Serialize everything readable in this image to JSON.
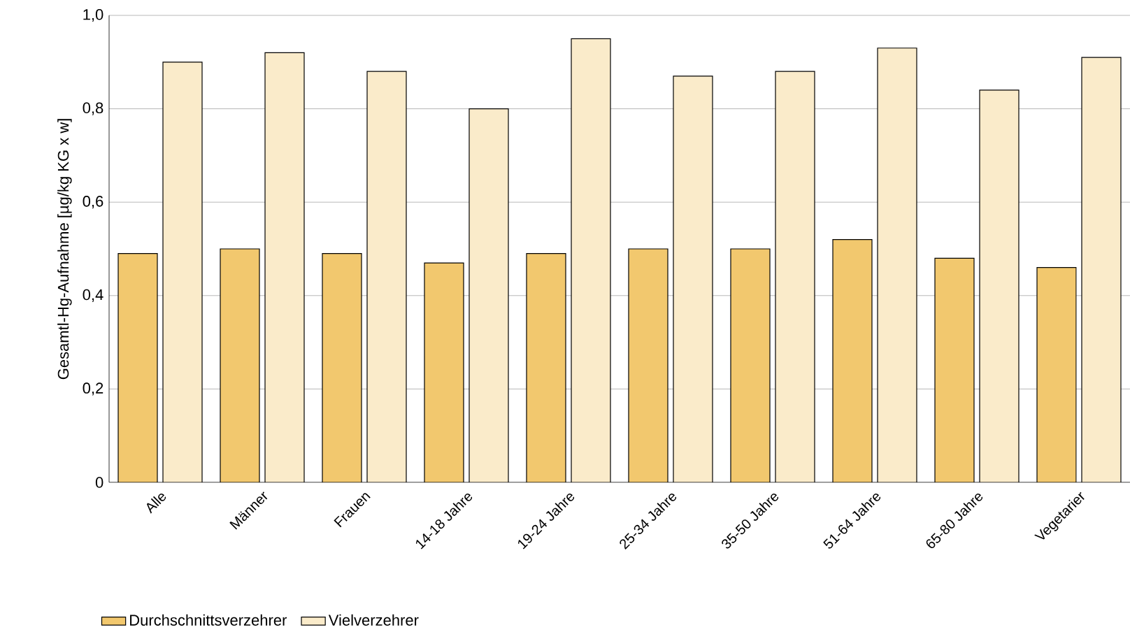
{
  "chart_data": {
    "type": "bar",
    "ylabel": "Gesamtl-Hg-Aufnahme [µg/kg KG x w]",
    "categories": [
      "Alle",
      "Männer",
      "Frauen",
      "14-18 Jahre",
      "19-24 Jahre",
      "25-34 Jahre",
      "35-50 Jahre",
      "51-64 Jahre",
      "65-80 Jahre",
      "Vegetarier"
    ],
    "series": [
      {
        "name": "Durchschnittsverzehrer",
        "color": "#f2c86e",
        "values": [
          0.49,
          0.5,
          0.49,
          0.47,
          0.49,
          0.5,
          0.5,
          0.52,
          0.48,
          0.46
        ]
      },
      {
        "name": "Vielverzehrer",
        "color": "#faebca",
        "values": [
          0.9,
          0.92,
          0.88,
          0.8,
          0.95,
          0.87,
          0.88,
          0.93,
          0.84,
          0.91
        ]
      }
    ],
    "ylim": [
      0,
      1
    ],
    "yticks": [
      {
        "value": 0,
        "label": "0"
      },
      {
        "value": 0.2,
        "label": "0,2"
      },
      {
        "value": 0.4,
        "label": "0,4"
      },
      {
        "value": 0.6,
        "label": "0,6"
      },
      {
        "value": 0.8,
        "label": "0,8"
      },
      {
        "value": 1,
        "label": "1,0"
      }
    ],
    "grid": "y",
    "legend": "bottom"
  }
}
